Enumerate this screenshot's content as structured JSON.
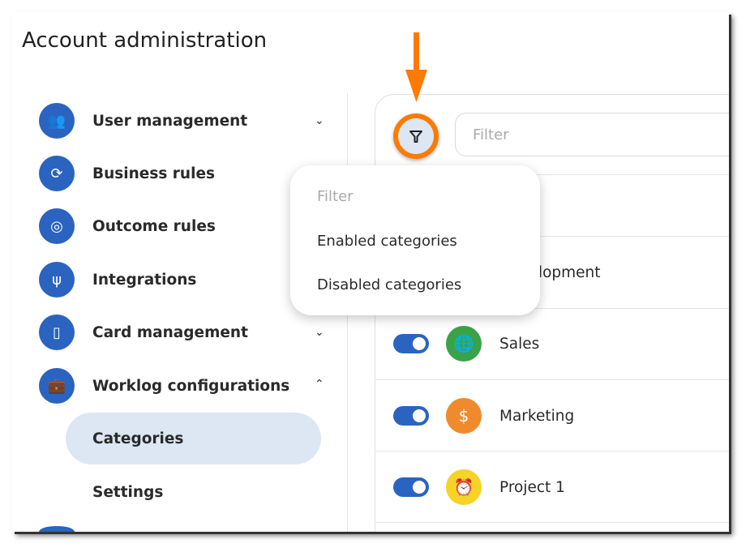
{
  "title": "Account administration",
  "sidebar": {
    "items": [
      {
        "label": "User management",
        "icon": "users-icon",
        "chevron": "down"
      },
      {
        "label": "Business rules",
        "icon": "sync-icon"
      },
      {
        "label": "Outcome rules",
        "icon": "target-icon"
      },
      {
        "label": "Integrations",
        "icon": "usb-icon"
      },
      {
        "label": "Card management",
        "icon": "card-icon",
        "chevron": "down"
      },
      {
        "label": "Worklog configurations",
        "icon": "briefcase-clock-icon",
        "chevron": "up"
      }
    ],
    "subitems": [
      {
        "label": "Categories",
        "active": true
      },
      {
        "label": "Settings"
      }
    ]
  },
  "filter": {
    "placeholder": "Filter",
    "icon": "filter-icon"
  },
  "menu": {
    "header": "Filter",
    "items": [
      "Enabled categories",
      "Disabled categories"
    ]
  },
  "categories": [
    {
      "label": "Development",
      "visible_label": "opment"
    },
    {
      "label": "Sales",
      "enabled": true,
      "color": "#3aa34a",
      "icon": "globe-icon"
    },
    {
      "label": "Marketing",
      "enabled": true,
      "color": "#f08a2c",
      "icon": "dollar-icon"
    },
    {
      "label": "Project 1",
      "enabled": true,
      "color": "#f5d327",
      "icon": "alarm-icon"
    }
  ],
  "colors": {
    "accent": "#2a64c0",
    "highlight": "#ff7a00",
    "active_bg": "#dde7f4"
  }
}
